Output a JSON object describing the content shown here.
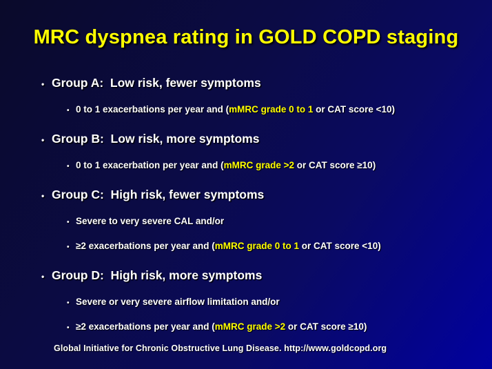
{
  "slide": {
    "title": "MRC dyspnea rating in GOLD COPD staging",
    "footer": "Global Initiative for Chronic Obstructive Lung Disease. http://www.goldcopd.org",
    "colors": {
      "title_text": "#FFFF00",
      "body_text": "#FFFFFF",
      "highlight_text": "#FFFF00",
      "background_dark": "#0A0A2A",
      "background_bright": "#0101A0"
    },
    "bullet_glyph": "•",
    "groups": [
      {
        "heading": "Group A:  Low risk, fewer symptoms",
        "details": [
          {
            "pre": "0 to 1 exacerbations per year and (",
            "highlight": "mMRC grade 0 to 1",
            "post": " or CAT score <10)"
          }
        ]
      },
      {
        "heading": "Group B:  Low risk, more symptoms",
        "details": [
          {
            "pre": "0 to 1 exacerbation per year and (",
            "highlight": "mMRC grade >2",
            "post": " or CAT score ≥10)"
          }
        ]
      },
      {
        "heading": "Group C:  High risk, fewer symptoms",
        "details": [
          {
            "pre": "Severe to very severe CAL and/or",
            "highlight": "",
            "post": ""
          },
          {
            "pre": "≥2 exacerbations per year and (",
            "highlight": "mMRC grade 0 to 1",
            "post": " or CAT score <10)"
          }
        ]
      },
      {
        "heading": "Group D:  High risk, more symptoms",
        "details": [
          {
            "pre": "Severe or very severe airflow limitation and/or",
            "highlight": "",
            "post": ""
          },
          {
            "pre": "≥2 exacerbations per year and (",
            "highlight": "mMRC grade >2",
            "post": " or CAT score ≥10)"
          }
        ]
      }
    ]
  }
}
